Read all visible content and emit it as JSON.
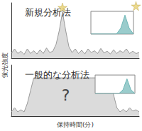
{
  "chart_data": [
    {
      "type": "line",
      "title": "新規分析法",
      "y_label": "蛍光強度",
      "xlim": [
        0,
        40
      ],
      "ylim": [
        0,
        12
      ],
      "tick_labels": false,
      "x": [
        0,
        1,
        2,
        3,
        4,
        5,
        6,
        7,
        8,
        9,
        10,
        11,
        12,
        13,
        14,
        15,
        16,
        17,
        18,
        19,
        20,
        21,
        22,
        23,
        24,
        25,
        26,
        27,
        28,
        29,
        30,
        31,
        32,
        33,
        34,
        35,
        36,
        37,
        38,
        39,
        40
      ],
      "series": [
        {
          "color": "#999999",
          "values": [
            1,
            2,
            1,
            1.5,
            0.8,
            2,
            1,
            1.6,
            0.9,
            1.8,
            1,
            2.2,
            1.2,
            1.5,
            3,
            6,
            10,
            6,
            2.5,
            1.2,
            2,
            1,
            1.7,
            0.9,
            2,
            1.2,
            1.6,
            1,
            2.1,
            1.1,
            1.5,
            0.9,
            1.8,
            1,
            1.6,
            1.2,
            2,
            1,
            1.5,
            1,
            1.2
          ]
        },
        {
          "type": "scatter",
          "marker": "star",
          "color": "#e6d070",
          "x": [
            16,
            39
          ],
          "values": [
            11,
            11.3
          ]
        }
      ]
    },
    {
      "type": "line",
      "xlim": [
        0,
        10
      ],
      "ylim": [
        0,
        12
      ],
      "tick_labels": false,
      "x": [
        0,
        1,
        2,
        3,
        4,
        5,
        6,
        7,
        8,
        9,
        10
      ],
      "series": [
        {
          "color": "#6fb7b7",
          "values": [
            0,
            0,
            0,
            0,
            0,
            0,
            0,
            3,
            10,
            3,
            0
          ]
        }
      ]
    },
    {
      "type": "line",
      "title": "一般的な分析法",
      "x_label": "保持時間(分)",
      "xlim": [
        0,
        40
      ],
      "ylim": [
        0,
        12
      ],
      "tick_labels": false,
      "annotations": [
        {
          "text": "?",
          "x": 17,
          "y": 5
        }
      ],
      "x": [
        0,
        1,
        2,
        3,
        4,
        5,
        6,
        7,
        8,
        9,
        10,
        11,
        12,
        13,
        14,
        15,
        16,
        17,
        18,
        19,
        20,
        21,
        22,
        23,
        24,
        25,
        26,
        27,
        28,
        29,
        30,
        31,
        32,
        33,
        34,
        35,
        36,
        37,
        38,
        39,
        40
      ],
      "series": [
        {
          "color": "#999999",
          "values": [
            1,
            2,
            1,
            1.5,
            1,
            3,
            6,
            9,
            9,
            9,
            9,
            9,
            9,
            9,
            9,
            9,
            9,
            9,
            9,
            9,
            9,
            9,
            9,
            9,
            9,
            9,
            9,
            9,
            9,
            9,
            9,
            8,
            5,
            2,
            1,
            1.6,
            1,
            2,
            1.2,
            1.5,
            1
          ]
        }
      ]
    },
    {
      "type": "line",
      "xlim": [
        0,
        10
      ],
      "ylim": [
        0,
        10
      ],
      "tick_labels": false,
      "x": [
        0,
        1,
        2,
        3,
        4,
        5,
        6,
        7,
        8,
        9,
        10
      ],
      "series": [
        {
          "color": "#6fb7b7",
          "values": [
            0,
            0,
            0,
            0,
            0,
            0,
            0,
            2,
            8,
            2,
            0
          ]
        }
      ]
    }
  ]
}
